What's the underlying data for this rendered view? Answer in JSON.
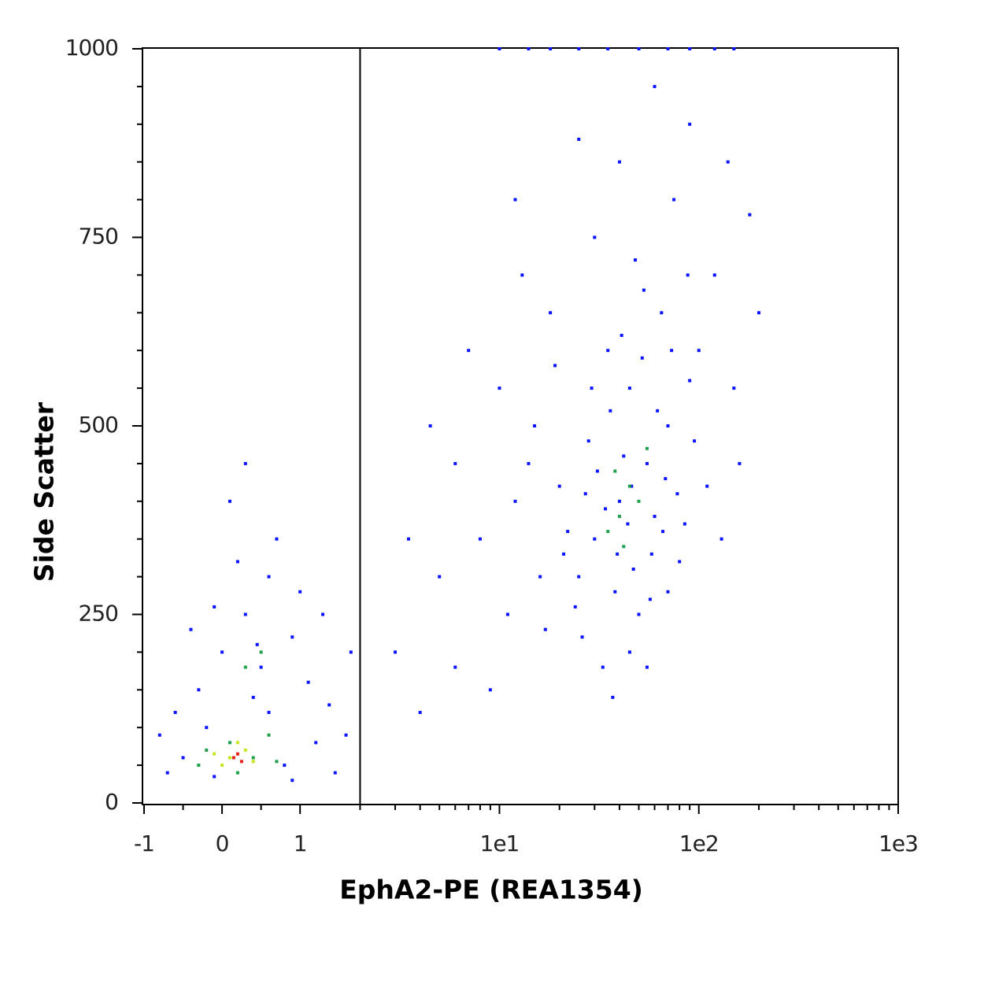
{
  "chart_data": {
    "type": "scatter",
    "xlabel": "EphA2-PE (REA1354)",
    "ylabel": "Side Scatter",
    "xscale": "biexponential",
    "xlim": [
      -1,
      1000
    ],
    "ylim": [
      0,
      1000
    ],
    "xticks": [
      -1,
      0,
      1,
      {
        "value": 10,
        "label": "1e1"
      },
      {
        "value": 100,
        "label": "1e2"
      },
      {
        "value": 1000,
        "label": "1e3"
      }
    ],
    "xminor_ticks": [
      -0.5,
      0.5,
      2,
      3,
      4,
      5,
      6,
      7,
      8,
      9,
      20,
      30,
      40,
      50,
      60,
      70,
      80,
      90,
      200,
      300,
      400,
      500,
      600,
      700,
      800,
      900
    ],
    "yticks": [
      0,
      250,
      500,
      750,
      1000
    ],
    "yminor_ticks": [
      50,
      100,
      150,
      200,
      300,
      350,
      400,
      450,
      550,
      600,
      650,
      700,
      800,
      850,
      900,
      950
    ],
    "gate_x": 2,
    "series": [
      {
        "color": "#0a14ff",
        "x": [
          40,
          30,
          55,
          25,
          70,
          45,
          35,
          60,
          20,
          80,
          50,
          28,
          90,
          38,
          65,
          22,
          48,
          100,
          15,
          12,
          8,
          5,
          6,
          10,
          18,
          30,
          75,
          120,
          150,
          110,
          45,
          33,
          26,
          58,
          42,
          36,
          52,
          68,
          85,
          24,
          17,
          9,
          4,
          3,
          7,
          13,
          40,
          90,
          60,
          25,
          200,
          180,
          140,
          16,
          11,
          6,
          3.5,
          4.5,
          12,
          55,
          70,
          95,
          130,
          160,
          27,
          31,
          44,
          39,
          47,
          34,
          62,
          29,
          41,
          53,
          73,
          88,
          19,
          14,
          21,
          37,
          46,
          57,
          66,
          78,
          10,
          14,
          18,
          25,
          35,
          50,
          70,
          90,
          120,
          150,
          -0.5,
          -0.7,
          0.8,
          1.2,
          1.5,
          -0.3,
          0,
          0.3,
          0.6,
          0.9,
          0.5,
          -0.1,
          0.2,
          1.1,
          -0.6,
          1.4,
          0.7,
          0.1,
          -0.2,
          1.7,
          0.4,
          1.0,
          -0.4,
          0.9,
          -0.8,
          0.3,
          1.8,
          0.6,
          -0.1,
          1.3,
          0.45
        ],
        "y": [
          400,
          350,
          450,
          300,
          500,
          550,
          600,
          380,
          420,
          320,
          250,
          480,
          560,
          280,
          650,
          360,
          720,
          600,
          500,
          400,
          350,
          300,
          450,
          550,
          650,
          750,
          800,
          700,
          550,
          420,
          200,
          180,
          220,
          330,
          460,
          520,
          590,
          430,
          370,
          260,
          230,
          150,
          120,
          200,
          600,
          700,
          850,
          900,
          950,
          880,
          650,
          780,
          850,
          300,
          250,
          180,
          350,
          500,
          800,
          180,
          280,
          480,
          350,
          450,
          410,
          440,
          370,
          330,
          310,
          390,
          520,
          550,
          620,
          680,
          600,
          700,
          580,
          450,
          330,
          140,
          420,
          270,
          360,
          410,
          1000,
          1000,
          1000,
          1000,
          1000,
          1000,
          1000,
          1000,
          1000,
          1000,
          60,
          40,
          50,
          80,
          40,
          150,
          200,
          250,
          300,
          220,
          180,
          260,
          320,
          160,
          120,
          130,
          350,
          400,
          100,
          90,
          140,
          280,
          230,
          30,
          90,
          450,
          200,
          120,
          35,
          250,
          210
        ]
      },
      {
        "color": "#1fa04a",
        "x": [
          40,
          45,
          35,
          50,
          38,
          42,
          55,
          0.1,
          0.4,
          -0.2,
          0.6,
          0.3,
          0.5,
          0.2,
          0.7,
          -0.3
        ],
        "y": [
          380,
          420,
          360,
          400,
          440,
          340,
          470,
          80,
          60,
          70,
          90,
          180,
          200,
          40,
          55,
          50
        ]
      },
      {
        "color": "#c8e61e",
        "x": [
          0.1,
          0.3,
          0.0,
          0.4,
          0.2,
          -0.1
        ],
        "y": [
          60,
          70,
          50,
          55,
          80,
          65
        ]
      },
      {
        "color": "#e8201a",
        "x": [
          0.15,
          0.25,
          0.2
        ],
        "y": [
          60,
          55,
          65
        ]
      }
    ]
  }
}
